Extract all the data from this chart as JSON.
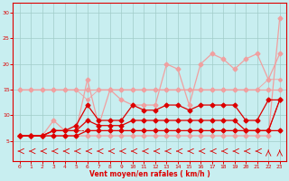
{
  "x": [
    0,
    1,
    2,
    3,
    4,
    5,
    6,
    7,
    8,
    9,
    10,
    11,
    12,
    13,
    14,
    15,
    16,
    17,
    18,
    19,
    20,
    21,
    22,
    23
  ],
  "line_upper_top": [
    6,
    6,
    6,
    6,
    6,
    6,
    6,
    6,
    6,
    6,
    6,
    6,
    6,
    6,
    6,
    6,
    6,
    6,
    6,
    6,
    6,
    6,
    6,
    29
  ],
  "line_upper_bot": [
    15,
    15,
    15,
    15,
    15,
    15,
    15,
    15,
    15,
    15,
    15,
    15,
    15,
    15,
    15,
    15,
    15,
    15,
    15,
    15,
    15,
    15,
    15,
    15
  ],
  "line_mid_top": [
    6,
    6,
    6,
    9,
    7,
    7,
    17,
    8,
    15,
    13,
    12,
    12,
    12,
    20,
    19,
    12,
    20,
    22,
    21,
    19,
    21,
    22,
    17,
    22
  ],
  "line_mid_bot": [
    15,
    15,
    15,
    15,
    15,
    15,
    13,
    15,
    15,
    15,
    15,
    15,
    15,
    15,
    15,
    15,
    15,
    15,
    15,
    15,
    15,
    15,
    17,
    17
  ],
  "line_red_a": [
    6,
    6,
    6,
    7,
    7,
    8,
    12,
    9,
    9,
    9,
    12,
    11,
    11,
    12,
    12,
    11,
    12,
    12,
    12,
    12,
    9,
    9,
    13,
    13
  ],
  "line_red_b": [
    6,
    6,
    6,
    7,
    7,
    7,
    9,
    8,
    8,
    8,
    9,
    9,
    9,
    9,
    9,
    9,
    9,
    9,
    9,
    9,
    7,
    7,
    7,
    13
  ],
  "line_red_c": [
    6,
    6,
    6,
    6,
    6,
    6,
    7,
    7,
    7,
    7,
    7,
    7,
    7,
    7,
    7,
    7,
    7,
    7,
    7,
    7,
    7,
    7,
    7,
    7
  ],
  "line_red_d": [
    6,
    6,
    6,
    7,
    7,
    7,
    7,
    7,
    7,
    7,
    7,
    7,
    7,
    7,
    7,
    7,
    7,
    7,
    7,
    7,
    7,
    7,
    7,
    13
  ],
  "bg_color": "#c8eef0",
  "grid_color": "#a0ccc8",
  "color_light": "#f0a0a0",
  "color_mid": "#ff6666",
  "color_dark": "#dd0000",
  "xlabel": "Vent moyen/en rafales ( km/h )",
  "ylim": [
    1,
    32
  ],
  "yticks": [
    5,
    10,
    15,
    20,
    25,
    30
  ],
  "xticks": [
    0,
    1,
    2,
    3,
    4,
    5,
    6,
    7,
    8,
    9,
    10,
    11,
    12,
    13,
    14,
    15,
    16,
    17,
    18,
    19,
    20,
    21,
    22,
    23
  ]
}
